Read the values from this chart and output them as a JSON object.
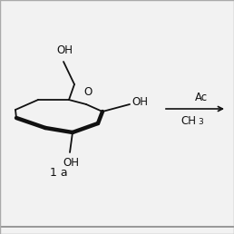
{
  "bg_color": "#f2f2f2",
  "white": "#ffffff",
  "black": "#111111",
  "line_color": "#111111",
  "lw_thin": 1.3,
  "lw_thick": 3.2,
  "fig_w": 2.58,
  "fig_h": 2.58,
  "dpi": 100,
  "label_OH1": "OH",
  "label_OH2": "OH",
  "label_OH3": "OH",
  "label_O": "O",
  "label_Ac": "Ac",
  "label_CH3": "CH",
  "label_sub3": "3",
  "label_1a": "1 a"
}
